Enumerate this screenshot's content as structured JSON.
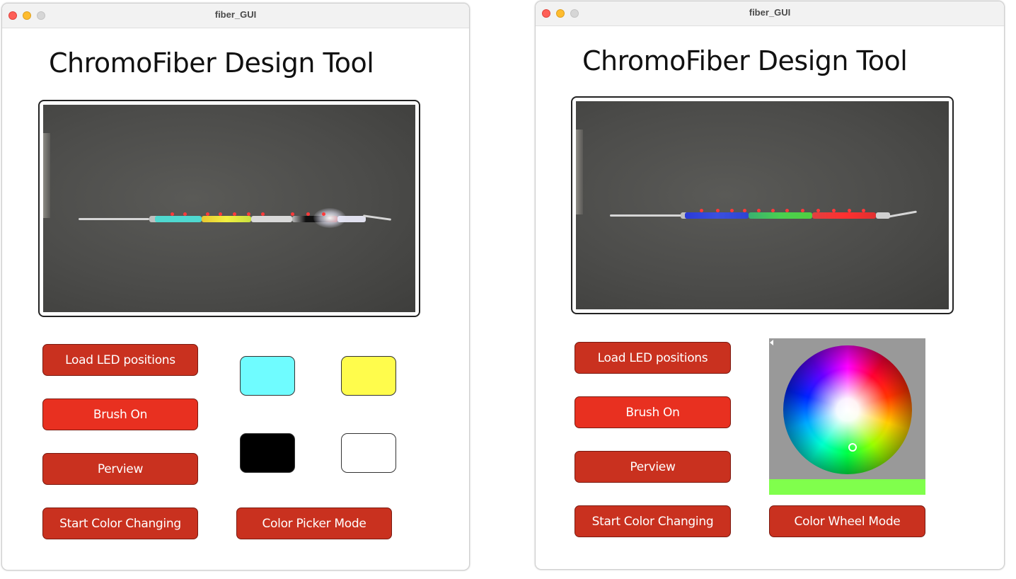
{
  "windows": [
    {
      "title": "fiber_GUI",
      "app_title": "ChromoFiber Design Tool",
      "buttons": {
        "load": "Load LED positions",
        "brush": "Brush On",
        "preview": "Perview",
        "start": "Start Color Changing",
        "mode": "Color Picker Mode"
      },
      "swatches": [
        "#6ffcff",
        "#fffc4c",
        "#000000",
        "#ffffff"
      ]
    },
    {
      "title": "fiber_GUI",
      "app_title": "ChromoFiber Design Tool",
      "buttons": {
        "load": "Load LED positions",
        "brush": "Brush On",
        "preview": "Perview",
        "start": "Start Color Changing",
        "mode": "Color Wheel Mode"
      },
      "selected_color": "#80ff4c"
    }
  ]
}
